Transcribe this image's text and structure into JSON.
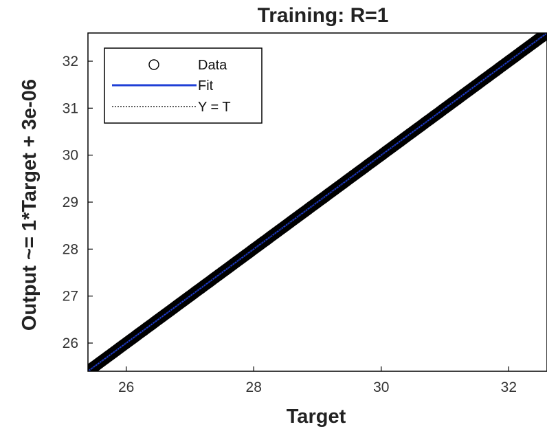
{
  "chart_data": {
    "type": "scatter",
    "title": "Training: R=1",
    "xlabel": "Target",
    "ylabel": "Output ~= 1*Target + 3e-06",
    "xlim": [
      25.4,
      32.6
    ],
    "ylim": [
      25.4,
      32.6
    ],
    "xticks": [
      26,
      28,
      30,
      32
    ],
    "yticks": [
      26,
      27,
      28,
      29,
      30,
      31,
      32
    ],
    "grid": false,
    "legend_position": "top-left",
    "series": [
      {
        "name": "Data",
        "kind": "markers",
        "marker": "circle",
        "color": "#000000",
        "x": [
          25.45,
          25.6,
          25.8,
          26.0,
          26.2,
          26.4,
          26.6,
          26.8,
          27.0,
          27.2,
          27.4,
          27.6,
          27.8,
          28.0,
          28.2,
          28.4,
          28.6,
          28.8,
          29.0,
          29.2,
          29.4,
          29.6,
          29.8,
          30.0,
          30.2,
          30.4,
          30.6,
          30.8,
          31.0,
          31.2,
          31.4,
          31.6,
          31.8,
          32.0,
          32.2,
          32.4,
          32.55
        ],
        "y": [
          25.45,
          25.6,
          25.8,
          26.0,
          26.2,
          26.4,
          26.6,
          26.8,
          27.0,
          27.2,
          27.4,
          27.6,
          27.8,
          28.0,
          28.2,
          28.4,
          28.6,
          28.8,
          29.0,
          29.2,
          29.4,
          29.6,
          29.8,
          30.0,
          30.2,
          30.4,
          30.6,
          30.8,
          31.0,
          31.2,
          31.4,
          31.6,
          31.8,
          32.0,
          32.2,
          32.4,
          32.55
        ]
      },
      {
        "name": "Fit",
        "kind": "line",
        "color": "#1f3fd6",
        "x": [
          25.4,
          32.6
        ],
        "y": [
          25.4,
          32.6
        ]
      },
      {
        "name": "Y = T",
        "kind": "dotted-line",
        "color": "#000000",
        "x": [
          25.4,
          32.6
        ],
        "y": [
          25.4,
          32.6
        ]
      }
    ]
  },
  "legend": {
    "data_label": "Data",
    "fit_label": "Fit",
    "yt_label": "Y = T"
  }
}
